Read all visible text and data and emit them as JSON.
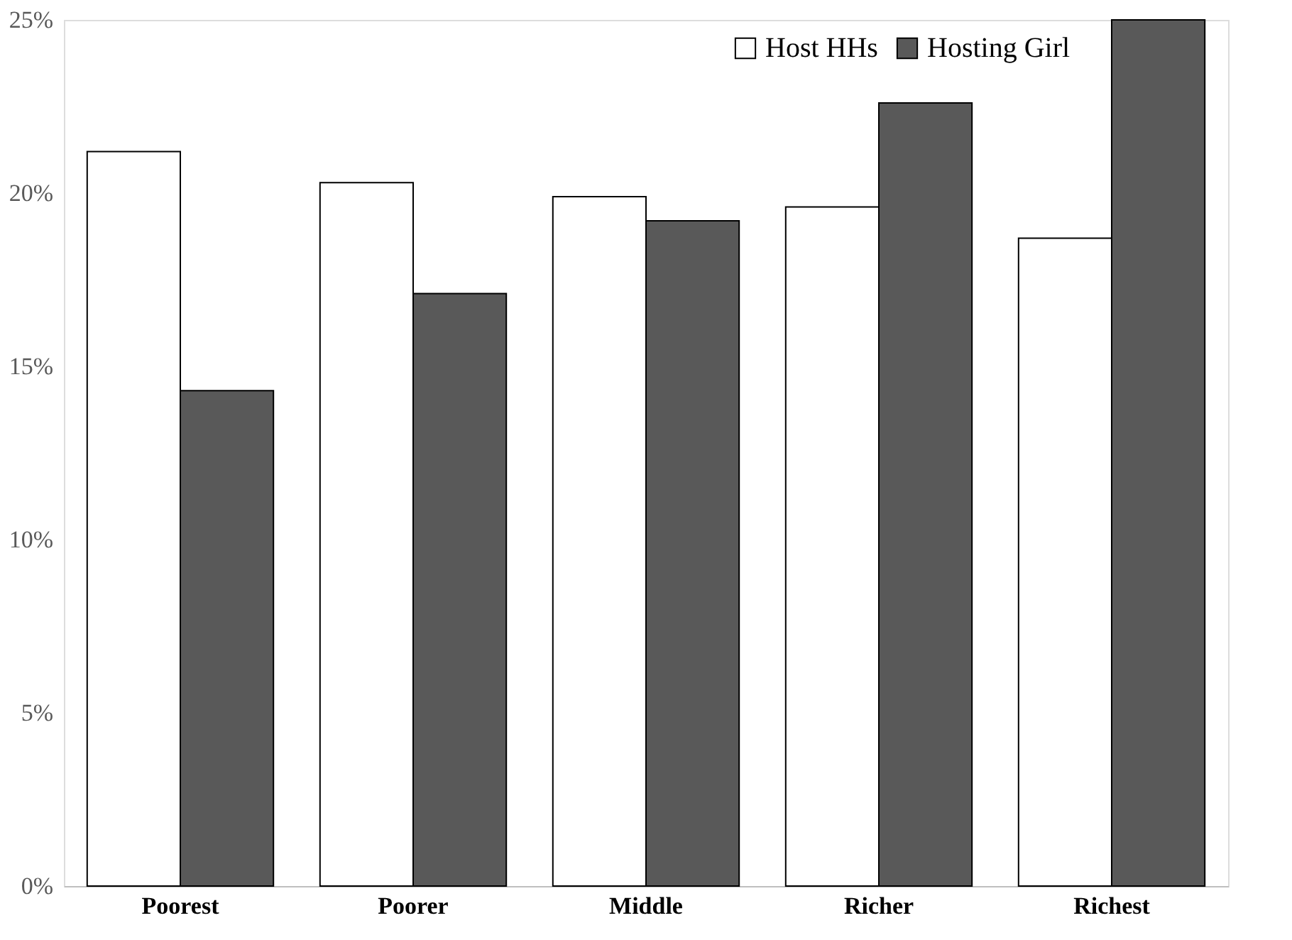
{
  "chart_data": {
    "type": "bar",
    "categories": [
      "Poorest",
      "Poorer",
      "Middle",
      "Richer",
      "Richest"
    ],
    "series": [
      {
        "name": "Host HHs",
        "color": "#ffffff",
        "values": [
          21.2,
          20.3,
          19.9,
          19.6,
          18.7
        ]
      },
      {
        "name": "Hosting Girl",
        "color": "#595959",
        "values": [
          14.3,
          17.1,
          19.2,
          22.6,
          25.0
        ]
      }
    ],
    "ylim": [
      0,
      25
    ],
    "yticks": [
      {
        "value": 0,
        "label": "0%"
      },
      {
        "value": 5,
        "label": "5%"
      },
      {
        "value": 10,
        "label": "10%"
      },
      {
        "value": 15,
        "label": "15%"
      },
      {
        "value": 20,
        "label": "20%"
      },
      {
        "value": 25,
        "label": "25%"
      }
    ],
    "grid": false,
    "legend": "top right"
  }
}
